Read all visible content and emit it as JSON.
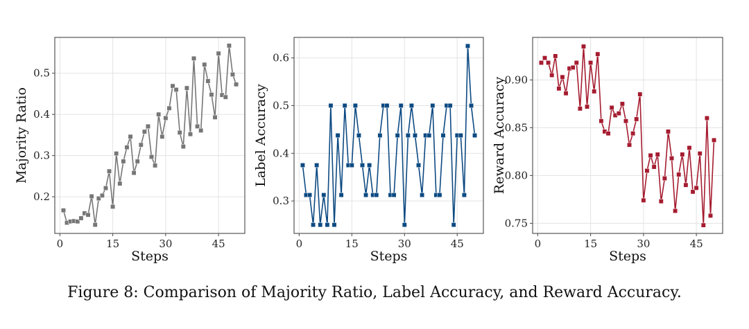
{
  "caption": "Figure 8: Comparison of Majority Ratio, Label Accuracy, and Reward Accuracy.",
  "chart_data": [
    {
      "type": "line",
      "title": "",
      "xlabel": "Steps",
      "ylabel": "Majority Ratio",
      "color": "#767676",
      "marker": "square",
      "grid": true,
      "xlim": [
        -1.45,
        52.45
      ],
      "ylim": [
        0.111,
        0.587
      ],
      "xticks": [
        0,
        15,
        30,
        45
      ],
      "yticks": [
        0.2,
        0.3,
        0.4,
        0.5
      ],
      "ytick_labels": [
        "0.2",
        "0.3",
        "0.4",
        "0.5"
      ],
      "x": [
        1,
        2,
        3,
        4,
        5,
        6,
        7,
        8,
        9,
        10,
        11,
        12,
        13,
        14,
        15,
        16,
        17,
        18,
        19,
        20,
        21,
        22,
        23,
        24,
        25,
        26,
        27,
        28,
        29,
        30,
        31,
        32,
        33,
        34,
        35,
        36,
        37,
        38,
        39,
        40,
        41,
        42,
        43,
        44,
        45,
        46,
        47,
        48,
        49,
        50
      ],
      "y": [
        0.167,
        0.137,
        0.14,
        0.141,
        0.14,
        0.148,
        0.16,
        0.156,
        0.201,
        0.132,
        0.196,
        0.203,
        0.221,
        0.262,
        0.176,
        0.305,
        0.232,
        0.286,
        0.32,
        0.346,
        0.258,
        0.286,
        0.326,
        0.358,
        0.371,
        0.297,
        0.276,
        0.4,
        0.346,
        0.391,
        0.415,
        0.469,
        0.46,
        0.356,
        0.322,
        0.464,
        0.352,
        0.536,
        0.371,
        0.361,
        0.521,
        0.481,
        0.448,
        0.393,
        0.548,
        0.447,
        0.442,
        0.567,
        0.497,
        0.473
      ]
    },
    {
      "type": "line",
      "title": "",
      "xlabel": "Steps",
      "ylabel": "Label Accuracy",
      "color": "#0d4a82",
      "marker": "square",
      "grid": true,
      "xlim": [
        -1.45,
        52.45
      ],
      "ylim": [
        0.232,
        0.643
      ],
      "xticks": [
        0,
        15,
        30,
        45
      ],
      "yticks": [
        0.3,
        0.4,
        0.5,
        0.6
      ],
      "ytick_labels": [
        "0.3",
        "0.4",
        "0.5",
        "0.6"
      ],
      "x": [
        1,
        2,
        3,
        4,
        5,
        6,
        7,
        8,
        9,
        10,
        11,
        12,
        13,
        14,
        15,
        16,
        17,
        18,
        19,
        20,
        21,
        22,
        23,
        24,
        25,
        26,
        27,
        28,
        29,
        30,
        31,
        32,
        33,
        34,
        35,
        36,
        37,
        38,
        39,
        40,
        41,
        42,
        43,
        44,
        45,
        46,
        47,
        48,
        49,
        50
      ],
      "y": [
        0.375,
        0.3125,
        0.3125,
        0.25,
        0.375,
        0.25,
        0.3125,
        0.25,
        0.5,
        0.25,
        0.4375,
        0.3125,
        0.5,
        0.375,
        0.375,
        0.5,
        0.4375,
        0.375,
        0.3125,
        0.375,
        0.3125,
        0.3125,
        0.4375,
        0.5,
        0.5,
        0.3125,
        0.3125,
        0.4375,
        0.5,
        0.25,
        0.4375,
        0.5,
        0.4375,
        0.375,
        0.3125,
        0.4375,
        0.4375,
        0.5,
        0.3125,
        0.3125,
        0.4375,
        0.5,
        0.5,
        0.25,
        0.4375,
        0.4375,
        0.3125,
        0.625,
        0.5,
        0.4375
      ]
    },
    {
      "type": "line",
      "title": "",
      "xlabel": "Steps",
      "ylabel": "Reward Accuracy",
      "color": "#a51c30",
      "marker": "square",
      "grid": true,
      "xlim": [
        -1.45,
        52.45
      ],
      "ylim": [
        0.7394,
        0.9445
      ],
      "xticks": [
        0,
        15,
        30,
        45
      ],
      "yticks": [
        0.75,
        0.8,
        0.85,
        0.9
      ],
      "ytick_labels": [
        "0.75",
        "0.80",
        "0.85",
        "0.90"
      ],
      "x": [
        1,
        2,
        3,
        4,
        5,
        6,
        7,
        8,
        9,
        10,
        11,
        12,
        13,
        14,
        15,
        16,
        17,
        18,
        19,
        20,
        21,
        22,
        23,
        24,
        25,
        26,
        27,
        28,
        29,
        30,
        31,
        32,
        33,
        34,
        35,
        36,
        37,
        38,
        39,
        40,
        41,
        42,
        43,
        44,
        45,
        46,
        47,
        48,
        49,
        50
      ],
      "y": [
        0.918,
        0.923,
        0.918,
        0.905,
        0.925,
        0.891,
        0.903,
        0.886,
        0.912,
        0.913,
        0.918,
        0.87,
        0.935,
        0.872,
        0.918,
        0.888,
        0.927,
        0.857,
        0.846,
        0.844,
        0.871,
        0.863,
        0.865,
        0.875,
        0.857,
        0.832,
        0.844,
        0.859,
        0.885,
        0.774,
        0.805,
        0.821,
        0.809,
        0.822,
        0.773,
        0.797,
        0.846,
        0.818,
        0.763,
        0.801,
        0.822,
        0.79,
        0.829,
        0.783,
        0.787,
        0.823,
        0.748,
        0.86,
        0.758,
        0.837
      ]
    }
  ]
}
